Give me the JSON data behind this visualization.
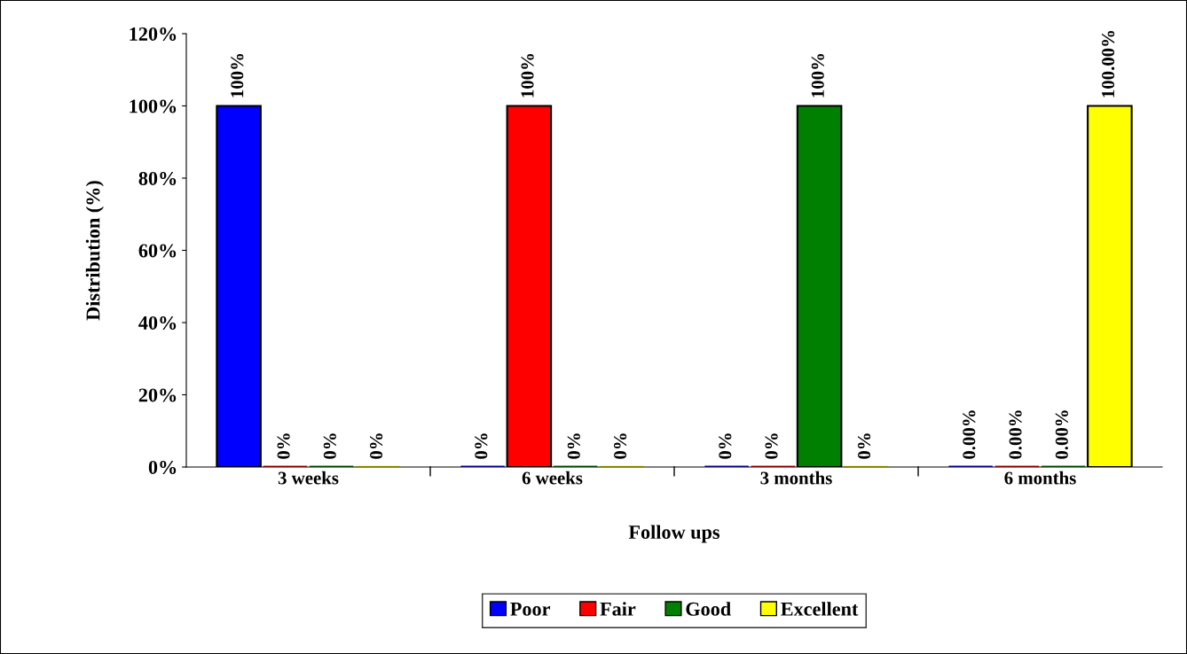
{
  "chart_data": {
    "type": "bar",
    "categories": [
      "3 weeks",
      "6 weeks",
      "3 months",
      "6 months"
    ],
    "xlabel": "Follow ups",
    "ylabel": "Distribution (%)",
    "ylim": [
      0,
      120
    ],
    "yticks": [
      {
        "value": 0,
        "label": "0%"
      },
      {
        "value": 20,
        "label": "20%"
      },
      {
        "value": 40,
        "label": "40%"
      },
      {
        "value": 60,
        "label": "60%"
      },
      {
        "value": 80,
        "label": "80%"
      },
      {
        "value": 100,
        "label": "100%"
      },
      {
        "value": 120,
        "label": "120%"
      }
    ],
    "series": [
      {
        "name": "Poor",
        "color": "#0000ff",
        "values": [
          100,
          0,
          0,
          0
        ],
        "value_labels": [
          "100%",
          "0%",
          "0%",
          "0.00%"
        ]
      },
      {
        "name": "Fair",
        "color": "#ff0000",
        "values": [
          0,
          100,
          0,
          0
        ],
        "value_labels": [
          "0%",
          "100%",
          "0%",
          "0.00%"
        ]
      },
      {
        "name": "Good",
        "color": "#008000",
        "values": [
          0,
          0,
          100,
          0
        ],
        "value_labels": [
          "0%",
          "0%",
          "100%",
          "0.00%"
        ]
      },
      {
        "name": "Excellent",
        "color": "#ffff00",
        "values": [
          0,
          0,
          0,
          100
        ],
        "value_labels": [
          "0%",
          "0%",
          "0%",
          "100.00%"
        ]
      }
    ],
    "grid": false,
    "legend": "bottom"
  }
}
